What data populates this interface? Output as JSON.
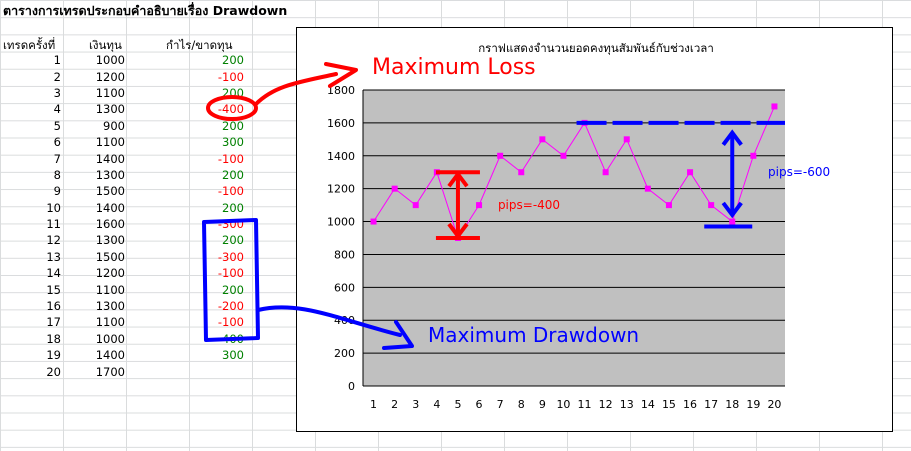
{
  "sheet": {
    "title": "ตารางการเทรดประกอบคำอธิบายเรื่อง Drawdown",
    "headers": [
      "เทรดครั้งที่",
      "เงินทุน",
      "กำไร/ขาดทุน"
    ],
    "rows": [
      {
        "n": "1",
        "capital": "1000",
        "pl": "200"
      },
      {
        "n": "2",
        "capital": "1200",
        "pl": "-100"
      },
      {
        "n": "3",
        "capital": "1100",
        "pl": "200"
      },
      {
        "n": "4",
        "capital": "1300",
        "pl": "-400"
      },
      {
        "n": "5",
        "capital": "900",
        "pl": "200"
      },
      {
        "n": "6",
        "capital": "1100",
        "pl": "300"
      },
      {
        "n": "7",
        "capital": "1400",
        "pl": "-100"
      },
      {
        "n": "8",
        "capital": "1300",
        "pl": "200"
      },
      {
        "n": "9",
        "capital": "1500",
        "pl": "-100"
      },
      {
        "n": "10",
        "capital": "1400",
        "pl": "200"
      },
      {
        "n": "11",
        "capital": "1600",
        "pl": "-300"
      },
      {
        "n": "12",
        "capital": "1300",
        "pl": "200"
      },
      {
        "n": "13",
        "capital": "1500",
        "pl": "-300"
      },
      {
        "n": "14",
        "capital": "1200",
        "pl": "-100"
      },
      {
        "n": "15",
        "capital": "1100",
        "pl": "200"
      },
      {
        "n": "16",
        "capital": "1300",
        "pl": "-200"
      },
      {
        "n": "17",
        "capital": "1100",
        "pl": "-100"
      },
      {
        "n": "18",
        "capital": "1000",
        "pl": "400"
      },
      {
        "n": "19",
        "capital": "1400",
        "pl": "300"
      },
      {
        "n": "20",
        "capital": "1700",
        "pl": ""
      }
    ],
    "colors": {
      "positive": "#008000",
      "negative": "#ff0000"
    }
  },
  "chart_data": {
    "type": "line",
    "title": "กราฟแสดงจำนวนยอดคงทุนสัมพันธ์กับช่วงเวลา",
    "categories": [
      "1",
      "2",
      "3",
      "4",
      "5",
      "6",
      "7",
      "8",
      "9",
      "10",
      "11",
      "12",
      "13",
      "14",
      "15",
      "16",
      "17",
      "18",
      "19",
      "20"
    ],
    "series": [
      {
        "values": [
          1000,
          1200,
          1100,
          1300,
          900,
          1100,
          1400,
          1300,
          1500,
          1400,
          1600,
          1300,
          1500,
          1200,
          1100,
          1300,
          1100,
          1000,
          1400,
          1700
        ]
      }
    ],
    "ylim": [
      0,
      1800
    ],
    "yticks": [
      "0",
      "200",
      "400",
      "600",
      "800",
      "1000",
      "1200",
      "1400",
      "1600",
      "1800"
    ],
    "grid": true,
    "plot_background": "#c0c0c0",
    "line_color": "#ff00ff",
    "annotations": {
      "max_loss": {
        "label": "Maximum Loss",
        "pips": "pips=-400",
        "color": "#ff0000"
      },
      "max_drawdown": {
        "label": "Maximum Drawdown",
        "pips": "pips=-600",
        "color": "#0000ff"
      }
    }
  }
}
